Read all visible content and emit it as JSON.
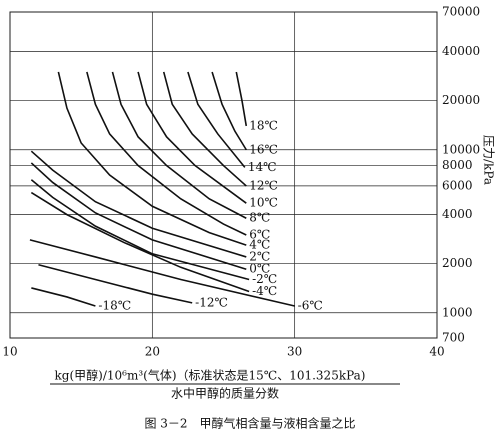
{
  "chart_data": {
    "type": "line",
    "x_label": "kg(甲醇)/10⁶m³(气体)（标准状态是15℃、101.325kPa)",
    "x_label_2": "水中甲醇的质量分数",
    "y_label": "压力/kPa",
    "caption": "图 3－2　甲醇气相含量与液相含量之比",
    "log_y": true,
    "grid": true,
    "color": "#111111",
    "xlim": [
      10,
      40
    ],
    "xticks": [
      10,
      20,
      30,
      40
    ],
    "ylim": [
      700,
      70000
    ],
    "yticks": [
      700,
      1000,
      2000,
      4000,
      6000,
      8000,
      10000,
      20000,
      40000,
      70000
    ],
    "series": [
      {
        "name": "18℃",
        "x": [
          25.9,
          26.3,
          26.6
        ],
        "values": [
          30000,
          20000,
          14000
        ]
      },
      {
        "name": "16℃",
        "x": [
          24.2,
          24.9,
          25.8,
          26.6
        ],
        "values": [
          30000,
          19000,
          13000,
          10000
        ]
      },
      {
        "name": "14℃",
        "x": [
          22.5,
          23.2,
          24.6,
          26.5
        ],
        "values": [
          30000,
          19000,
          12500,
          7800
        ]
      },
      {
        "name": "12℃",
        "x": [
          20.8,
          21.4,
          22.8,
          25,
          26.6
        ],
        "values": [
          30000,
          19000,
          12500,
          8000,
          6000
        ]
      },
      {
        "name": "10℃",
        "x": [
          19,
          19.6,
          21,
          23,
          26.6
        ],
        "values": [
          30000,
          19000,
          12000,
          8000,
          4700
        ]
      },
      {
        "name": "8℃",
        "x": [
          17.2,
          17.8,
          19,
          21,
          24,
          26.6
        ],
        "values": [
          30000,
          19000,
          12000,
          8000,
          5000,
          3800
        ]
      },
      {
        "name": "6℃",
        "x": [
          15.4,
          16,
          17,
          19,
          22,
          25,
          26.6
        ],
        "values": [
          30000,
          19000,
          12500,
          8000,
          5000,
          3500,
          3000
        ]
      },
      {
        "name": "4℃",
        "x": [
          13.4,
          14,
          15,
          17,
          20,
          24,
          26.6
        ],
        "values": [
          30000,
          18000,
          11000,
          7000,
          4500,
          3100,
          2600
        ]
      },
      {
        "name": "2℃",
        "x": [
          11.5,
          13,
          16,
          20,
          26.6
        ],
        "values": [
          9800,
          7500,
          4800,
          3300,
          2200
        ]
      },
      {
        "name": "0℃",
        "x": [
          11.5,
          13,
          16,
          20,
          26.6
        ],
        "values": [
          8300,
          6300,
          4100,
          2800,
          1850
        ]
      },
      {
        "name": "-2℃",
        "x": [
          11.5,
          13,
          16,
          20,
          26.8
        ],
        "values": [
          6550,
          5100,
          3400,
          2300,
          1600
        ]
      },
      {
        "name": "-4℃",
        "x": [
          11.5,
          14,
          18,
          22,
          26.8
        ],
        "values": [
          5460,
          4000,
          2700,
          1900,
          1350
        ]
      },
      {
        "name": "-6℃",
        "x": [
          11.4,
          16,
          22,
          30
        ],
        "values": [
          2800,
          2200,
          1600,
          1100
        ]
      },
      {
        "name": "-12℃",
        "x": [
          12,
          16,
          20,
          22.8
        ],
        "values": [
          1970,
          1600,
          1300,
          1150
        ]
      },
      {
        "name": "-18℃",
        "x": [
          11.5,
          14,
          16
        ],
        "values": [
          1420,
          1250,
          1100
        ]
      }
    ]
  }
}
